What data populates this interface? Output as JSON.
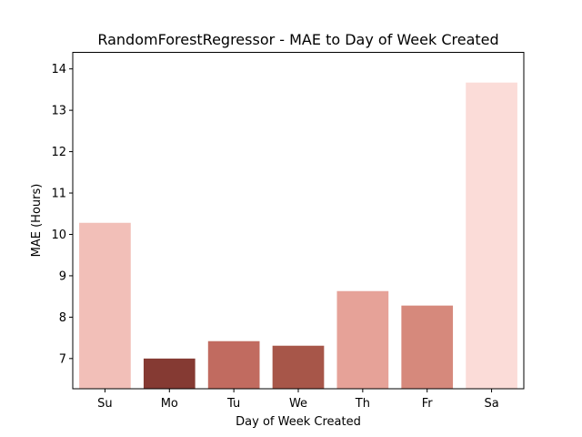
{
  "chart_data": {
    "type": "bar",
    "title": "RandomForestRegressor - MAE to Day of Week Created",
    "xlabel": "Day of Week Created",
    "ylabel": "MAE (Hours)",
    "categories": [
      "Su",
      "Mo",
      "Tu",
      "We",
      "Th",
      "Fr",
      "Sa"
    ],
    "values": [
      10.28,
      7.0,
      7.42,
      7.31,
      8.63,
      8.28,
      13.67
    ],
    "colors": [
      "#f2bfb8",
      "#853a33",
      "#c16b60",
      "#a75649",
      "#e6a298",
      "#d6897c",
      "#fbdcd8"
    ],
    "ylim": [
      6.27,
      14.4
    ],
    "yticks": [
      7,
      8,
      9,
      10,
      11,
      12,
      13,
      14
    ],
    "grid": false,
    "legend": "none"
  }
}
